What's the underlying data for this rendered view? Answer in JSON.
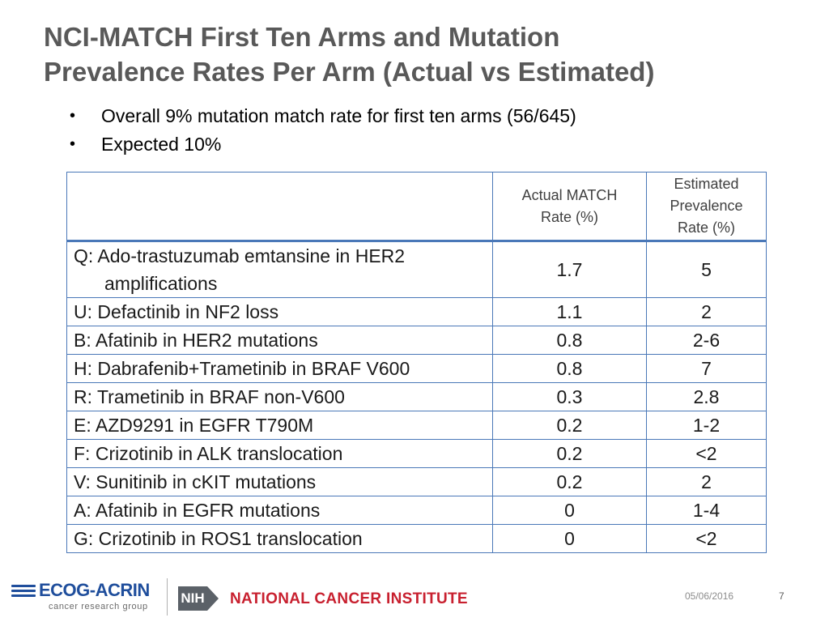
{
  "slide": {
    "title_line1": "NCI-MATCH First Ten Arms and Mutation",
    "title_line2": "Prevalence Rates Per Arm (Actual vs Estimated)",
    "bullets": [
      "Overall 9%  mutation match rate for first ten arms (56/645)",
      "Expected 10%"
    ],
    "bullet_icon": "bullet-dot"
  },
  "table": {
    "headers": {
      "arm": "",
      "actual_line1": "Actual MATCH",
      "actual_line2": "Rate (%)",
      "estimated_line1": "Estimated",
      "estimated_line2": "Prevalence",
      "estimated_line3": "Rate (%)"
    },
    "rows": [
      {
        "arm_line1": "Q:  Ado-trastuzumab emtansine in HER2",
        "arm_line2": "amplifications",
        "actual": "1.7",
        "estimated": "5"
      },
      {
        "arm": "U:  Defactinib in NF2 loss",
        "actual": "1.1",
        "estimated": "2"
      },
      {
        "arm": "B:  Afatinib in HER2 mutations",
        "actual": "0.8",
        "estimated": "2-6"
      },
      {
        "arm": "H:  Dabrafenib+Trametinib in  BRAF V600",
        "actual": "0.8",
        "estimated": "7"
      },
      {
        "arm": "R:  Trametinib in BRAF non-V600",
        "actual": "0.3",
        "estimated": "2.8"
      },
      {
        "arm": "E:  AZD9291 in EGFR T790M",
        "actual": "0.2",
        "estimated": "1-2"
      },
      {
        "arm": "F:  Crizotinib in ALK translocation",
        "actual": "0.2",
        "estimated": "<2"
      },
      {
        "arm": "V:  Sunitinib in cKIT mutations",
        "actual": "0.2",
        "estimated": "2"
      },
      {
        "arm": "A:  Afatinib in EGFR mutations",
        "actual": "0",
        "estimated": "1-4"
      },
      {
        "arm": "G: Crizotinib in ROS1 translocation",
        "actual": "0",
        "estimated": "<2"
      }
    ]
  },
  "footer": {
    "ecog_name": "ECOG-ACRIN",
    "ecog_sub": "cancer research group",
    "nih_label": "NIH",
    "nci_name": "NATIONAL CANCER INSTITUTE",
    "date": "05/06/2016",
    "page_number": "7"
  },
  "colors": {
    "title": "#595959",
    "table_border": "#4a78b8",
    "ecog_blue": "#1f4e9c",
    "nci_red": "#c8202f",
    "nih_gray": "#5b6168"
  }
}
